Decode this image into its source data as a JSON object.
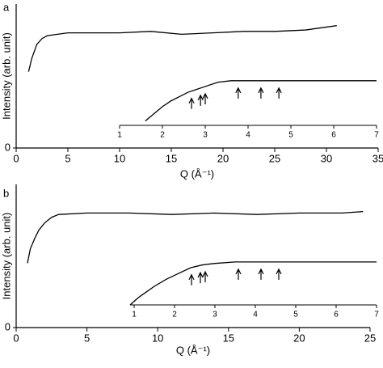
{
  "chart_data": [
    {
      "type": "line",
      "panel_label": "a",
      "xlabel": "Q (Å⁻¹)",
      "ylabel": "Intensity (arb. unit)",
      "xlim": [
        0,
        35
      ],
      "xticks": [
        0,
        5,
        10,
        15,
        20,
        25,
        30,
        35
      ],
      "ylim": [
        0,
        1
      ],
      "yticks": [
        0
      ],
      "x": [
        1.2,
        1.5,
        2,
        2.5,
        3,
        4,
        5,
        7,
        10,
        13,
        16,
        19,
        22,
        25,
        28,
        31
      ],
      "values": [
        0.53,
        0.62,
        0.72,
        0.76,
        0.78,
        0.79,
        0.8,
        0.8,
        0.8,
        0.81,
        0.79,
        0.8,
        0.81,
        0.81,
        0.82,
        0.85
      ],
      "color": "#000000",
      "inset": {
        "xlim": [
          1,
          7
        ],
        "xticks": [
          1,
          2,
          3,
          4,
          5,
          6,
          7
        ],
        "ylim": [
          0,
          1
        ],
        "x": [
          1.6,
          1.8,
          2,
          2.2,
          2.4,
          2.6,
          2.8,
          3,
          3.3,
          3.6,
          4,
          5,
          6,
          7
        ],
        "values": [
          0.03,
          0.08,
          0.13,
          0.17,
          0.2,
          0.23,
          0.25,
          0.27,
          0.3,
          0.31,
          0.31,
          0.31,
          0.31,
          0.31
        ],
        "arrows": [
          2.68,
          2.89,
          3.0,
          3.77,
          4.3,
          4.72
        ]
      }
    },
    {
      "type": "line",
      "panel_label": "b",
      "xlabel": "Q (Å⁻¹)",
      "ylabel": "Intensity (arb. unit)",
      "xlim": [
        0,
        25
      ],
      "xticks": [
        0,
        5,
        10,
        15,
        20,
        25
      ],
      "ylim": [
        0,
        1
      ],
      "yticks": [
        0
      ],
      "x": [
        0.8,
        1,
        1.3,
        1.6,
        2,
        2.5,
        3,
        5,
        8,
        11,
        14,
        17,
        20,
        23,
        24.5
      ],
      "values": [
        0.45,
        0.55,
        0.62,
        0.68,
        0.73,
        0.77,
        0.79,
        0.8,
        0.8,
        0.79,
        0.8,
        0.79,
        0.8,
        0.8,
        0.81
      ],
      "color": "#000000",
      "inset": {
        "xlim": [
          0.9,
          7
        ],
        "xticks": [
          1,
          2,
          3,
          4,
          5,
          6,
          7
        ],
        "ylim": [
          0,
          1
        ],
        "x": [
          0.9,
          1.1,
          1.3,
          1.5,
          1.8,
          2.1,
          2.4,
          2.7,
          3,
          3.5,
          4,
          5,
          6,
          7
        ],
        "values": [
          0.0,
          0.05,
          0.09,
          0.13,
          0.18,
          0.22,
          0.26,
          0.28,
          0.29,
          0.3,
          0.3,
          0.3,
          0.3,
          0.3
        ],
        "arrows": [
          2.42,
          2.64,
          2.76,
          3.58,
          4.14,
          4.58
        ]
      }
    }
  ]
}
